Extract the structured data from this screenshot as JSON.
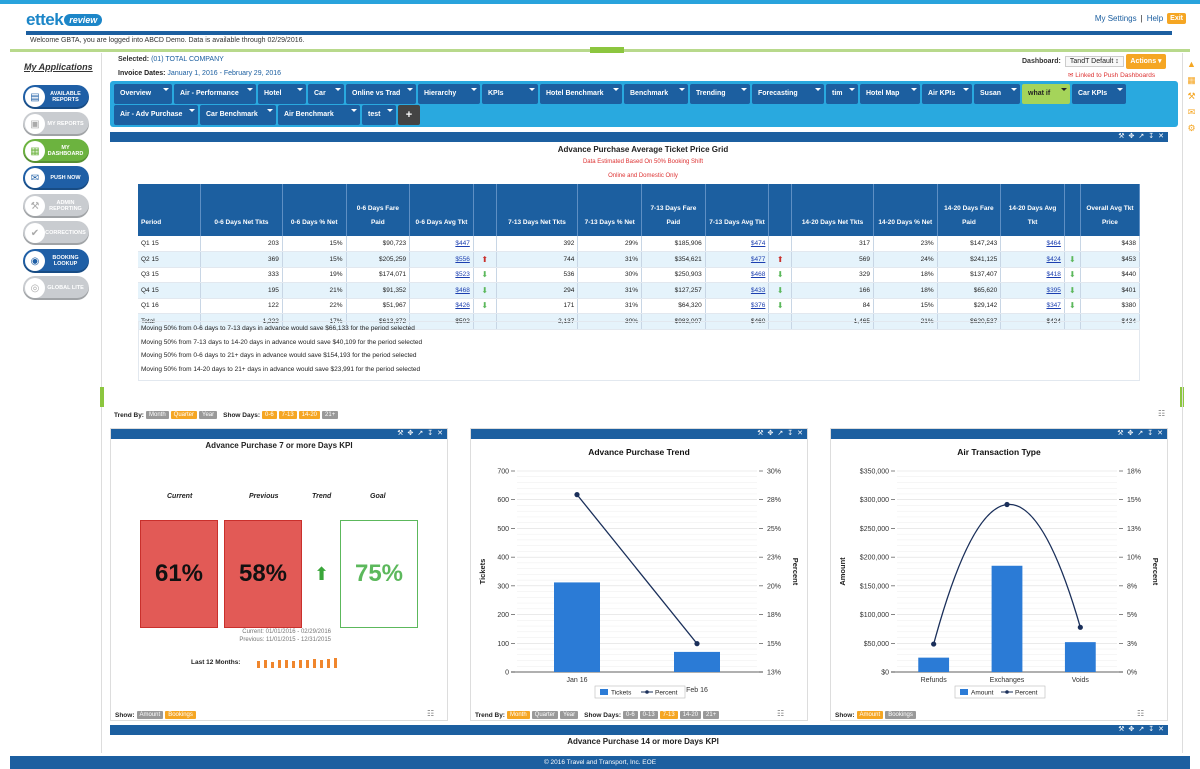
{
  "header": {
    "brand": "ettek",
    "brand_badge": "review",
    "my_settings": "My Settings",
    "separator": "|",
    "help": "Help",
    "exit": "Exit",
    "welcome": "Welcome GBTA, you are logged into ABCD Demo. Data is available through 02/29/2016."
  },
  "sidebar": {
    "title": "My Applications",
    "items": [
      {
        "label": "AVAILABLE REPORTS",
        "color": "blue",
        "icon": "folder-icon",
        "glyph": "▤"
      },
      {
        "label": "MY REPORTS",
        "color": "grey",
        "icon": "report-icon",
        "glyph": "▣"
      },
      {
        "label": "MY DASHBOARD",
        "color": "green",
        "icon": "dashboard-icon",
        "glyph": "▦"
      },
      {
        "label": "PUSH NOW",
        "color": "blue",
        "icon": "envelope-icon",
        "glyph": "✉"
      },
      {
        "label": "ADMIN REPORTING",
        "color": "grey",
        "icon": "admin-icon",
        "glyph": "⚒"
      },
      {
        "label": "CORRECTIONS",
        "color": "grey",
        "icon": "check-icon",
        "glyph": "✔"
      },
      {
        "label": "BOOKING LOOKUP",
        "color": "blue",
        "icon": "car-icon",
        "glyph": "◉"
      },
      {
        "label": "GLOBAL LITE",
        "color": "grey",
        "icon": "globe-icon",
        "glyph": "◎"
      }
    ]
  },
  "context": {
    "selected_label": "Selected:",
    "selected_value": "(01) TOTAL COMPANY",
    "invoice_label": "Invoice Dates:",
    "invoice_value": "January 1, 2016 - February 29, 2016",
    "dashboard_label": "Dashboard:",
    "dashboard_value": "TandT Default ↕",
    "actions": "Actions ▾",
    "linked": "Linked to Push Dashboards"
  },
  "tabs": {
    "row1": [
      "Overview",
      "Air - Performance",
      "Hotel",
      "Car",
      "Online vs Trad",
      "Hierarchy",
      "KPIs",
      "Hotel Benchmark",
      "Benchmark",
      "Trending",
      "Forecasting",
      "tim",
      "Hotel Map",
      "Air KPIs",
      "Susan",
      "what if",
      "Car KPIs"
    ],
    "row2": [
      "Air - Adv Purchase",
      "Car Benchmark",
      "Air Benchmark",
      "test"
    ],
    "plus": "+",
    "active": "what if"
  },
  "grid": {
    "title": "Advance Purchase Average Ticket Price Grid",
    "note1": "Data Estimated Based On 50% Booking Shift",
    "note2": "Online and Domestic Only",
    "headers": [
      "Period",
      "0-6 Days Net Tkts",
      "0-6 Days % Net",
      "0-6 Days Fare Paid",
      "0-6 Days Avg Tkt",
      "",
      "7-13 Days Net Tkts",
      "7-13 Days % Net",
      "7-13 Days Fare Paid",
      "7-13 Days Avg Tkt",
      "",
      "14-20 Days Net Tkts",
      "14-20 Days % Net",
      "14-20 Days Fare Paid",
      "14-20 Days Avg Tkt",
      "",
      "Overall Avg Tkt Price"
    ],
    "rows": [
      {
        "period": "Q1 15",
        "a": [
          "203",
          "15%",
          "$90,723",
          "$447"
        ],
        "a_arr": "",
        "b": [
          "392",
          "29%",
          "$185,906",
          "$474"
        ],
        "b_arr": "",
        "c": [
          "317",
          "23%",
          "$147,243",
          "$464"
        ],
        "c_arr": "",
        "overall": "$438"
      },
      {
        "period": "Q2 15",
        "a": [
          "369",
          "15%",
          "$205,259",
          "$556"
        ],
        "a_arr": "up",
        "b": [
          "744",
          "31%",
          "$354,621",
          "$477"
        ],
        "b_arr": "up",
        "c": [
          "569",
          "24%",
          "$241,125",
          "$424"
        ],
        "c_arr": "down",
        "overall": "$453"
      },
      {
        "period": "Q3 15",
        "a": [
          "333",
          "19%",
          "$174,071",
          "$523"
        ],
        "a_arr": "down",
        "b": [
          "536",
          "30%",
          "$250,903",
          "$468"
        ],
        "b_arr": "down",
        "c": [
          "329",
          "18%",
          "$137,407",
          "$418"
        ],
        "c_arr": "down",
        "overall": "$440"
      },
      {
        "period": "Q4 15",
        "a": [
          "195",
          "21%",
          "$91,352",
          "$468"
        ],
        "a_arr": "down",
        "b": [
          "294",
          "31%",
          "$127,257",
          "$433"
        ],
        "b_arr": "down",
        "c": [
          "166",
          "18%",
          "$65,620",
          "$395"
        ],
        "c_arr": "down",
        "overall": "$401"
      },
      {
        "period": "Q1 16",
        "a": [
          "122",
          "22%",
          "$51,967",
          "$426"
        ],
        "a_arr": "down",
        "b": [
          "171",
          "31%",
          "$64,320",
          "$376"
        ],
        "b_arr": "down",
        "c": [
          "84",
          "15%",
          "$29,142",
          "$347"
        ],
        "c_arr": "down",
        "overall": "$380"
      },
      {
        "period": "Total",
        "a": [
          "1,222",
          "17%",
          "$613,372",
          "$502"
        ],
        "a_arr": "",
        "b": [
          "2,137",
          "30%",
          "$983,007",
          "$460"
        ],
        "b_arr": "",
        "c": [
          "1,465",
          "21%",
          "$620,537",
          "$424"
        ],
        "c_arr": "",
        "overall": "$434"
      }
    ],
    "savings": [
      "Moving 50% from 0-6 days to 7-13 days in advance would save $66,133 for the period selected",
      "Moving 50% from 7-13 days to 14-20 days in advance would save $40,109 for the period selected",
      "Moving 50% from 0-6 days to 21+ days in advance would save $154,193 for the period selected",
      "Moving 50% from 14-20 days to 21+ days in advance would save $23,991 for the period selected"
    ],
    "trend_by": "Trend By:",
    "trend_opts": [
      "Month",
      "Quarter",
      "Year"
    ],
    "show_days": "Show Days:",
    "day_opts": [
      "0-6",
      "7-13",
      "14-20",
      "21+"
    ]
  },
  "kpi": {
    "title": "Advance Purchase 7 or more Days KPI",
    "col_current": "Current",
    "col_previous": "Previous",
    "col_trend": "Trend",
    "col_goal": "Goal",
    "current": "61%",
    "previous": "58%",
    "goal": "75%",
    "current_range": "Current: 01/01/2016 - 02/29/2016",
    "previous_range": "Previous: 11/01/2015 - 12/31/2015",
    "last12": "Last 12 Months:",
    "show": "Show:",
    "show_opts": [
      "Amount",
      "Bookings"
    ],
    "spark": [
      0.45,
      0.5,
      0.4,
      0.55,
      0.5,
      0.45,
      0.55,
      0.5,
      0.6,
      0.55,
      0.6,
      0.65
    ]
  },
  "trend_panel": {
    "trend_by": "Trend By:",
    "trend_opts": [
      "Month",
      "Quarter",
      "Year"
    ],
    "show_days": "Show Days:",
    "day_opts": [
      "0-6",
      "0-13",
      "7-13",
      "14-20",
      "21+"
    ]
  },
  "trans_panel": {
    "show": "Show:",
    "show_opts": [
      "Amount",
      "Bookings"
    ]
  },
  "bottom_panel": {
    "title": "Advance Purchase 14 or more Days KPI"
  },
  "footer": {
    "text": "© 2016 Travel and Transport, Inc. EOE"
  },
  "colors": {
    "brand": "#1c5fa0",
    "accent": "#29a9df",
    "orange": "#f5a623",
    "bar": "#2b7bd6"
  },
  "chart_data": [
    {
      "type": "bar",
      "title": "Advance Purchase Trend",
      "categories": [
        "Jan 16",
        "Feb 16"
      ],
      "series": [
        {
          "name": "Tickets",
          "axis": "left",
          "values": [
            312,
            70
          ]
        },
        {
          "name": "Percent",
          "axis": "right",
          "kind": "line",
          "values": [
            28.0,
            15.4
          ]
        }
      ],
      "ylabel": "Tickets",
      "y2label": "Percent",
      "ylim": [
        0,
        700
      ],
      "y2lim": [
        13,
        30
      ],
      "yticks": [
        "0",
        "100",
        "200",
        "300",
        "400",
        "500",
        "600",
        "700"
      ],
      "y2ticks": [
        "13%",
        "15%",
        "18%",
        "20%",
        "23%",
        "25%",
        "28%",
        "30%"
      ],
      "legend": "bottom"
    },
    {
      "type": "bar",
      "title": "Air Transaction Type",
      "categories": [
        "Refunds",
        "Exchanges",
        "Voids"
      ],
      "series": [
        {
          "name": "Amount",
          "axis": "left",
          "values": [
            25000,
            185000,
            52000
          ]
        },
        {
          "name": "Percent",
          "axis": "right",
          "kind": "line",
          "values": [
            2.5,
            15.0,
            4.0
          ]
        }
      ],
      "ylabel": "Amount",
      "y2label": "Percent",
      "ylim": [
        0,
        350000
      ],
      "y2lim": [
        0,
        18
      ],
      "yticks": [
        "$0",
        "$50,000",
        "$100,000",
        "$150,000",
        "$200,000",
        "$250,000",
        "$300,000",
        "$350,000"
      ],
      "y2ticks": [
        "0%",
        "3%",
        "5%",
        "8%",
        "10%",
        "13%",
        "15%",
        "18%"
      ],
      "legend": "bottom"
    }
  ]
}
